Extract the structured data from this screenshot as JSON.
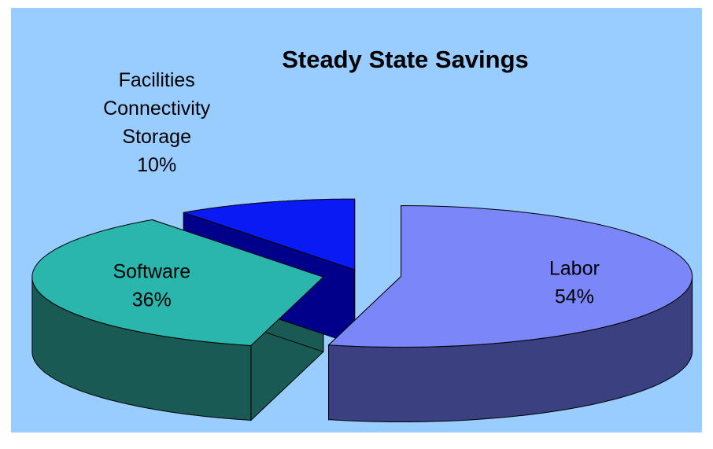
{
  "chart_data": {
    "type": "pie",
    "title": "Steady State Savings",
    "categories": [
      "Labor",
      "Software",
      "Facilities Connectivity Storage"
    ],
    "values": [
      54,
      36,
      10
    ],
    "value_labels": [
      "54%",
      "36%",
      "10%"
    ],
    "colors": [
      "#7b86f9",
      "#2ab5ad",
      "#0a1af5"
    ],
    "side_colors": [
      "#3b4080",
      "#1a5a55",
      "#00008a"
    ],
    "three_d": true
  }
}
